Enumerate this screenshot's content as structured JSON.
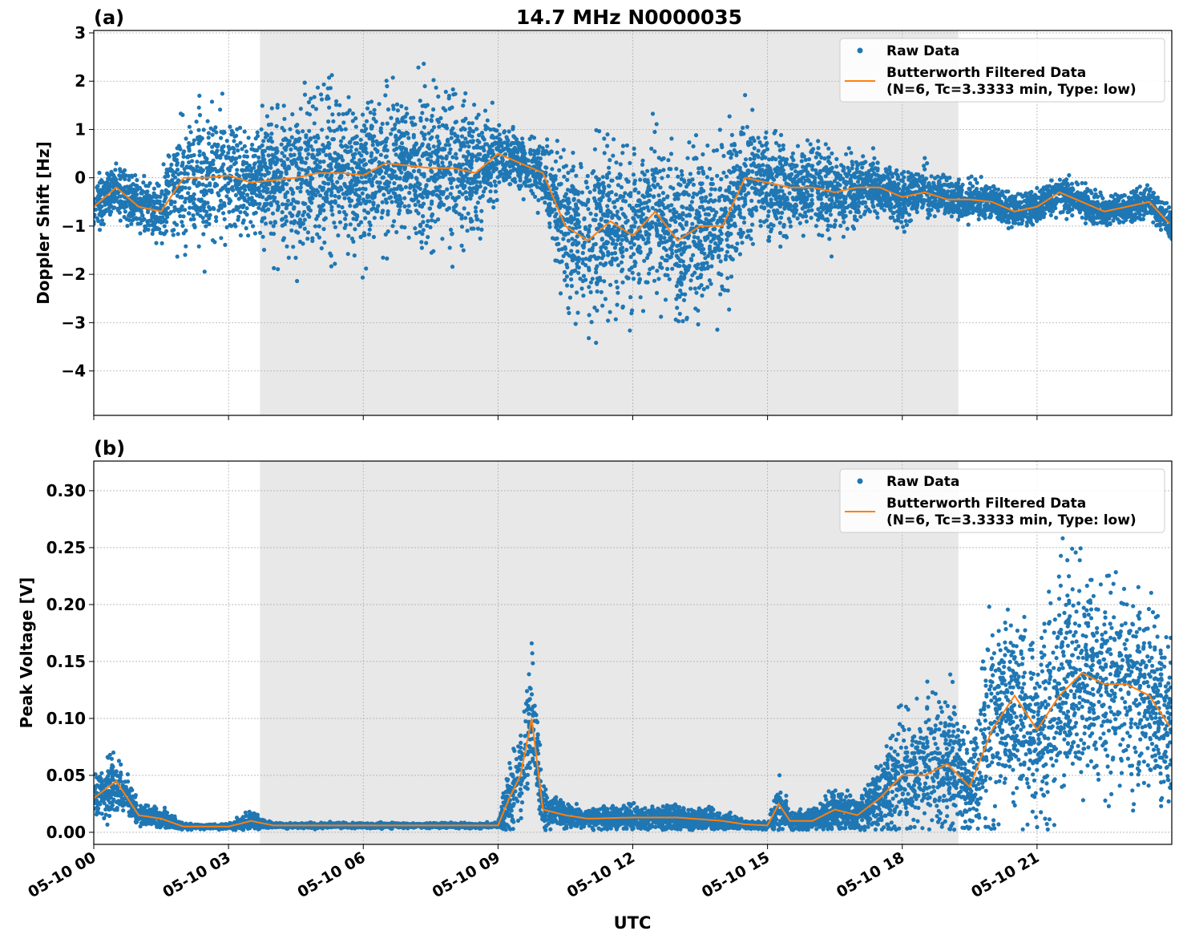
{
  "chart_data": {
    "title": "14.7 MHz N0000035",
    "xlabel": "UTC",
    "x_ticks": [
      "05-10 00",
      "05-10 03",
      "05-10 06",
      "05-10 09",
      "05-10 12",
      "05-10 15",
      "05-10 18",
      "05-10 21"
    ],
    "xlim": [
      "05-10 00:00",
      "05-11 00:00"
    ],
    "grid": true,
    "shaded_span": [
      "05-10 03:42",
      "05-10 19:15"
    ],
    "shade_color": "#e8e8e8",
    "colors": {
      "raw": "#1f77b4",
      "filtered": "#ff7f0e"
    },
    "panels": [
      {
        "label": "(a)",
        "type": "scatter+line",
        "ylabel": "Doppler Shift [Hz]",
        "ylim": [
          -4.92,
          3.05
        ],
        "y_ticks": [
          "3",
          "2",
          "1",
          "0",
          "−1",
          "−2",
          "−3",
          "−4"
        ],
        "y_tick_values": [
          3,
          2,
          1,
          0,
          -1,
          -2,
          -3,
          -4
        ],
        "legend": {
          "placement": "upper-right",
          "raw": "Raw Data",
          "filtered_1": "Butterworth Filtered Data",
          "filtered_2": "(N=6, Tc=3.3333 min, Type: low)"
        },
        "series_note_points": "[time, filtered value, raw half-spread]",
        "points": [
          [
            "00:00",
            -0.6,
            0.5
          ],
          [
            "00:30",
            -0.2,
            0.5
          ],
          [
            "01:00",
            -0.6,
            0.5
          ],
          [
            "01:30",
            -0.7,
            0.6
          ],
          [
            "02:00",
            0.0,
            1.3
          ],
          [
            "02:30",
            0.0,
            1.3
          ],
          [
            "03:00",
            0.05,
            1.2
          ],
          [
            "03:30",
            -0.1,
            0.9
          ],
          [
            "04:00",
            -0.05,
            1.3
          ],
          [
            "04:30",
            0.0,
            1.4
          ],
          [
            "05:00",
            0.1,
            1.4
          ],
          [
            "05:30",
            0.1,
            1.4
          ],
          [
            "06:00",
            0.05,
            1.4
          ],
          [
            "06:30",
            0.3,
            1.4
          ],
          [
            "07:00",
            0.25,
            1.4
          ],
          [
            "07:30",
            0.2,
            1.4
          ],
          [
            "08:00",
            0.2,
            1.4
          ],
          [
            "08:30",
            0.1,
            1.4
          ],
          [
            "09:00",
            0.5,
            0.6
          ],
          [
            "09:30",
            0.3,
            0.5
          ],
          [
            "10:00",
            0.1,
            0.6
          ],
          [
            "10:30",
            -1.0,
            1.4
          ],
          [
            "11:00",
            -1.3,
            1.5
          ],
          [
            "11:30",
            -0.9,
            1.5
          ],
          [
            "12:00",
            -1.2,
            1.5
          ],
          [
            "12:30",
            -0.7,
            1.5
          ],
          [
            "13:00",
            -1.3,
            1.5
          ],
          [
            "13:30",
            -1.0,
            1.5
          ],
          [
            "14:00",
            -1.0,
            1.4
          ],
          [
            "14:30",
            0.0,
            1.2
          ],
          [
            "15:00",
            -0.1,
            1.1
          ],
          [
            "15:30",
            -0.2,
            0.8
          ],
          [
            "16:00",
            -0.2,
            0.8
          ],
          [
            "16:30",
            -0.3,
            0.8
          ],
          [
            "17:00",
            -0.2,
            0.6
          ],
          [
            "17:30",
            -0.2,
            0.5
          ],
          [
            "18:00",
            -0.4,
            0.5
          ],
          [
            "18:30",
            -0.3,
            0.45
          ],
          [
            "19:00",
            -0.45,
            0.4
          ],
          [
            "19:30",
            -0.45,
            0.35
          ],
          [
            "20:00",
            -0.5,
            0.3
          ],
          [
            "20:30",
            -0.7,
            0.3
          ],
          [
            "21:00",
            -0.6,
            0.3
          ],
          [
            "21:30",
            -0.3,
            0.35
          ],
          [
            "22:00",
            -0.5,
            0.3
          ],
          [
            "22:30",
            -0.7,
            0.3
          ],
          [
            "23:00",
            -0.6,
            0.3
          ],
          [
            "23:30",
            -0.5,
            0.3
          ],
          [
            "24:00",
            -1.0,
            0.3
          ]
        ]
      },
      {
        "label": "(b)",
        "type": "scatter+line",
        "ylabel": "Peak Voltage [V]",
        "ylim": [
          -0.0106,
          0.326
        ],
        "y_ticks": [
          "0.30",
          "0.25",
          "0.20",
          "0.15",
          "0.10",
          "0.05",
          "0.00"
        ],
        "y_tick_values": [
          0.3,
          0.25,
          0.2,
          0.15,
          0.1,
          0.05,
          0.0
        ],
        "legend": {
          "placement": "upper-right",
          "raw": "Raw Data",
          "filtered_1": "Butterworth Filtered Data",
          "filtered_2": "(N=6, Tc=3.3333 min, Type: low)"
        },
        "points": [
          [
            "00:00",
            0.03,
            0.015
          ],
          [
            "00:30",
            0.045,
            0.025
          ],
          [
            "01:00",
            0.015,
            0.008
          ],
          [
            "01:30",
            0.012,
            0.008
          ],
          [
            "02:00",
            0.005,
            0.002
          ],
          [
            "03:00",
            0.005,
            0.002
          ],
          [
            "03:30",
            0.01,
            0.008
          ],
          [
            "04:00",
            0.006,
            0.002
          ],
          [
            "06:00",
            0.006,
            0.002
          ],
          [
            "09:00",
            0.006,
            0.002
          ],
          [
            "09:15",
            0.03,
            0.03
          ],
          [
            "09:30",
            0.05,
            0.04
          ],
          [
            "09:45",
            0.1,
            0.06
          ],
          [
            "10:00",
            0.02,
            0.015
          ],
          [
            "10:30",
            0.015,
            0.01
          ],
          [
            "11:00",
            0.012,
            0.008
          ],
          [
            "12:00",
            0.013,
            0.01
          ],
          [
            "13:00",
            0.013,
            0.01
          ],
          [
            "14:00",
            0.01,
            0.008
          ],
          [
            "14:30",
            0.007,
            0.003
          ],
          [
            "15:00",
            0.006,
            0.003
          ],
          [
            "15:15",
            0.025,
            0.02
          ],
          [
            "15:30",
            0.01,
            0.008
          ],
          [
            "16:00",
            0.01,
            0.008
          ],
          [
            "16:30",
            0.02,
            0.018
          ],
          [
            "17:00",
            0.015,
            0.012
          ],
          [
            "17:30",
            0.03,
            0.03
          ],
          [
            "18:00",
            0.05,
            0.05
          ],
          [
            "18:30",
            0.05,
            0.05
          ],
          [
            "19:00",
            0.06,
            0.06
          ],
          [
            "19:30",
            0.04,
            0.035
          ],
          [
            "20:00",
            0.09,
            0.08
          ],
          [
            "20:30",
            0.12,
            0.08
          ],
          [
            "21:00",
            0.09,
            0.08
          ],
          [
            "21:30",
            0.12,
            0.09
          ],
          [
            "22:00",
            0.14,
            0.09
          ],
          [
            "22:30",
            0.13,
            0.08
          ],
          [
            "23:00",
            0.13,
            0.08
          ],
          [
            "23:30",
            0.12,
            0.07
          ],
          [
            "24:00",
            0.09,
            0.06
          ]
        ]
      }
    ]
  }
}
